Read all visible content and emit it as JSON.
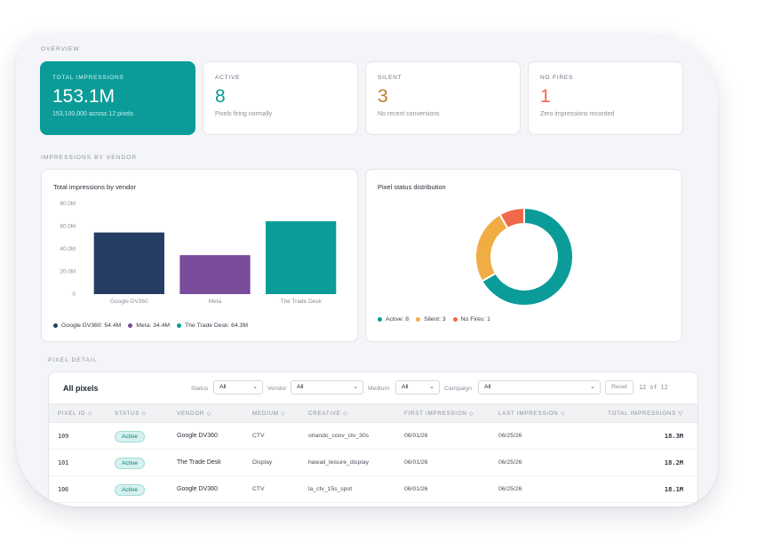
{
  "overview_label": "OVERVIEW",
  "kpis": [
    {
      "label": "TOTAL IMPRESSIONS",
      "value": "153.1M",
      "sub": "153,100,000 across 12 pixels"
    },
    {
      "label": "ACTIVE",
      "value": "8",
      "sub": "Pixels firing normally",
      "color": "#0b9c99"
    },
    {
      "label": "SILENT",
      "value": "3",
      "sub": "No recent conversions",
      "color": "#c27a25"
    },
    {
      "label": "NO FIRES",
      "value": "1",
      "sub": "Zero impressions recorded",
      "color": "#ef6a4b"
    }
  ],
  "vendor_section_label": "IMPRESSIONS BY VENDOR",
  "bar_card": {
    "title": "Total impressions by vendor",
    "legend": [
      "Google DV360: 54.4M",
      "Meta: 34.4M",
      "The Trade Desk: 64.3M"
    ]
  },
  "donut_card": {
    "title": "Pixel status distribution",
    "legend": [
      "Active: 8",
      "Silent: 3",
      "No Fires: 1"
    ]
  },
  "chart_data": [
    {
      "type": "bar",
      "title": "Total impressions by vendor",
      "categories": [
        "Google DV360",
        "Meta",
        "The Trade Desk"
      ],
      "values": [
        54.4,
        34.4,
        64.3
      ],
      "colors": [
        "#253d63",
        "#784b9b",
        "#0b9c99"
      ],
      "yticks": [
        "80.0M",
        "60.0M",
        "40.0M",
        "20.0M",
        "0"
      ],
      "ylim": [
        0,
        80
      ],
      "grid": false,
      "legend": "bottom"
    },
    {
      "type": "pie",
      "title": "Pixel status distribution",
      "categories": [
        "Active",
        "Silent",
        "No Fires"
      ],
      "values": [
        8,
        3,
        1
      ],
      "colors": [
        "#0b9c99",
        "#f0ad43",
        "#ef6a4b"
      ],
      "legend": "bottom"
    }
  ],
  "pixel_section_label": "PIXEL DETAIL",
  "table": {
    "title": "All pixels",
    "filters": {
      "status_label": "Status",
      "status_value": "All",
      "vendor_label": "Vendor",
      "vendor_value": "All",
      "medium_label": "Medium",
      "medium_value": "All",
      "campaign_label": "Campaign",
      "campaign_value": "All"
    },
    "reset_label": "Reset",
    "count": "12 of 12",
    "columns": [
      "PIXEL ID ◇",
      "STATUS ◇",
      "VENDOR ◇",
      "MEDIUM ◇",
      "CREATIVE ◇",
      "FIRST IMPRESSION ◇",
      "LAST IMPRESSION ◇",
      "TOTAL IMPRESSIONS ▽"
    ],
    "rows": [
      {
        "id": "109",
        "status": "Active",
        "vendor": "Google DV360",
        "medium": "CTV",
        "creative": "orlando_conv_ctv_30s",
        "first": "06/01/26",
        "last": "06/25/26",
        "total": "18.3M"
      },
      {
        "id": "101",
        "status": "Active",
        "vendor": "The Trade Desk",
        "medium": "Display",
        "creative": "hawaii_leisure_display",
        "first": "06/01/26",
        "last": "06/25/26",
        "total": "18.2M"
      },
      {
        "id": "106",
        "status": "Active",
        "vendor": "Google DV360",
        "medium": "CTV",
        "creative": "la_ctv_15s_spot",
        "first": "06/01/26",
        "last": "06/25/26",
        "total": "18.1M"
      }
    ]
  }
}
